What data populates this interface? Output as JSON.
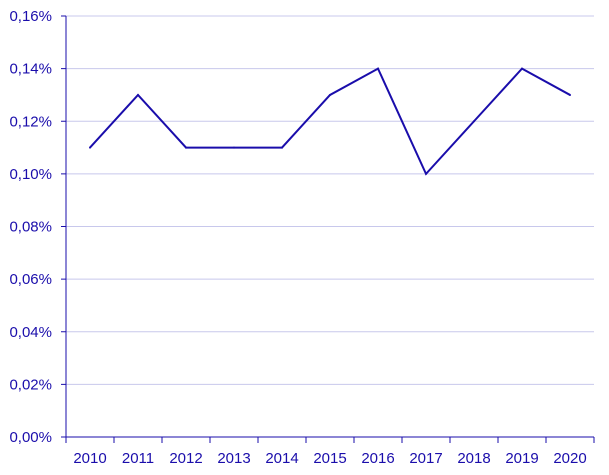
{
  "chart_data": {
    "type": "line",
    "categories": [
      "2010",
      "2011",
      "2012",
      "2013",
      "2014",
      "2015",
      "2016",
      "2017",
      "2018",
      "2019",
      "2020"
    ],
    "series": [
      {
        "values": [
          0.11,
          0.13,
          0.11,
          0.11,
          0.11,
          0.13,
          0.14,
          0.1,
          0.12,
          0.14,
          0.13
        ]
      }
    ],
    "y_ticks": [
      "0,00%",
      "0,02%",
      "0,04%",
      "0,06%",
      "0,08%",
      "0,10%",
      "0,12%",
      "0,14%",
      "0,16%"
    ],
    "ylim": [
      0,
      0.16
    ],
    "ytick_step": 0.02,
    "grid": true,
    "title": "",
    "xlabel": "",
    "ylabel": "",
    "colors": {
      "line": "#1a0dab",
      "axis": "#1a0dab",
      "text": "#1a0dab",
      "grid": "#c8c8ec"
    }
  }
}
